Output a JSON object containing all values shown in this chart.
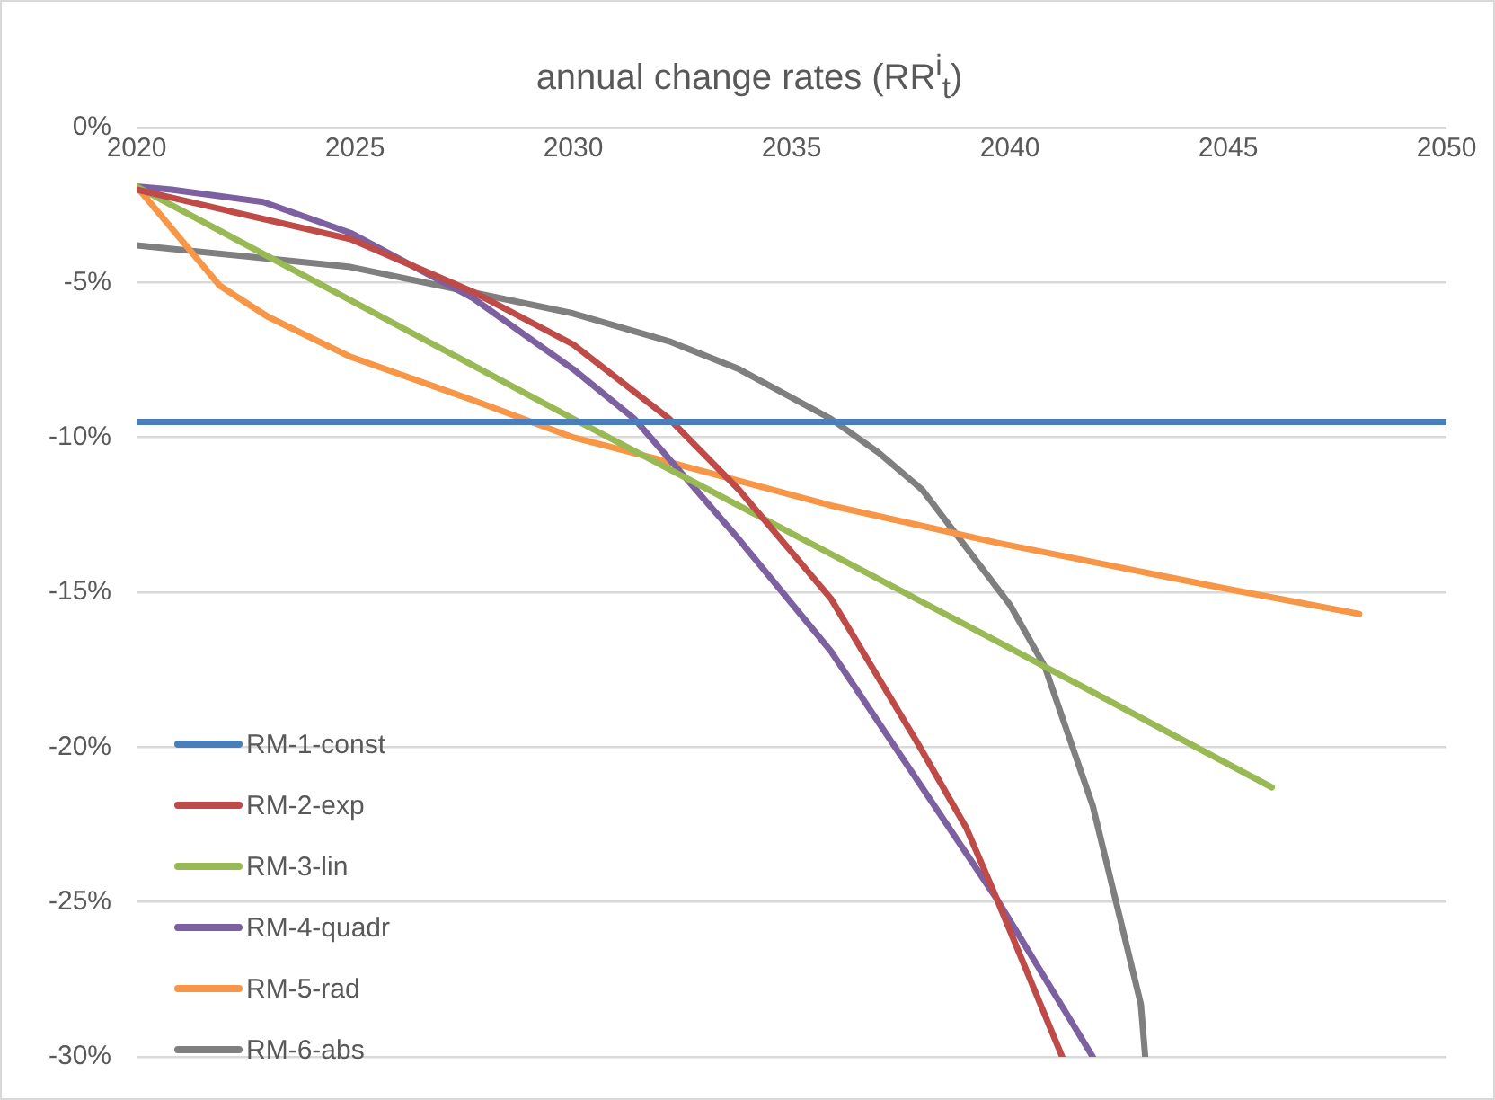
{
  "chart_data": {
    "type": "line",
    "title": "annual change rates (RR$^{i}$$_{t}$)",
    "xlim": [
      2020,
      2050
    ],
    "xticks": [
      2020,
      2025,
      2030,
      2035,
      2040,
      2045,
      2050
    ],
    "ylim": [
      -30,
      0
    ],
    "yticks": [
      {
        "value": 0,
        "label": "0%"
      },
      {
        "value": -5,
        "label": "-5%"
      },
      {
        "value": -10,
        "label": "-10%"
      },
      {
        "value": -15,
        "label": "-15%"
      },
      {
        "value": -20,
        "label": "-20%"
      },
      {
        "value": -25,
        "label": "-25%"
      },
      {
        "value": -30,
        "label": "-30%"
      }
    ],
    "grid": "y",
    "legend": "bottom left",
    "marker": "none",
    "line_style": "solid",
    "series": [
      {
        "name": "RM-1-const",
        "color": "#4a7ebb",
        "x": [
          2020,
          2050
        ],
        "values": [
          -9.5,
          -9.5
        ]
      },
      {
        "name": "RM-2-exp",
        "color": "#be4b48",
        "x": [
          2020,
          2024.9,
          2027.7,
          2030,
          2032.2,
          2033.8,
          2035.9,
          2037.9,
          2039,
          2039.7,
          2041.2
        ],
        "values": [
          -2.0,
          -3.6,
          -5.3,
          -7.0,
          -9.4,
          -11.7,
          -15.2,
          -19.9,
          -22.6,
          -24.9,
          -30
        ]
      },
      {
        "name": "RM-3-lin",
        "color": "#98b954",
        "x": [
          2020,
          2030,
          2040,
          2046
        ],
        "values": [
          -1.9,
          -9.4,
          -16.8,
          -21.3
        ]
      },
      {
        "name": "RM-4-quadr",
        "color": "#7d60a0",
        "x": [
          2020,
          2020.8,
          2022.9,
          2024.9,
          2027.7,
          2030,
          2031.4,
          2033.8,
          2035.9,
          2039.7,
          2041.9
        ],
        "values": [
          -1.9,
          -2.0,
          -2.4,
          -3.4,
          -5.5,
          -7.8,
          -9.4,
          -13.3,
          -16.9,
          -24.9,
          -30
        ]
      },
      {
        "name": "RM-5-rad",
        "color": "#f79646",
        "x": [
          2020,
          2021.9,
          2023,
          2024.9,
          2027.7,
          2030,
          2032.2,
          2035.9,
          2039.7,
          2045,
          2048
        ],
        "values": [
          -1.9,
          -5.1,
          -6.1,
          -7.4,
          -8.8,
          -10.0,
          -10.8,
          -12.2,
          -13.4,
          -14.9,
          -15.7
        ]
      },
      {
        "name": "RM-6-abs",
        "color": "#7f7f7f",
        "x": [
          2020,
          2024.9,
          2030,
          2032.2,
          2033.8,
          2035.9,
          2037,
          2038,
          2040,
          2040.8,
          2041.9,
          2043,
          2043.1
        ],
        "values": [
          -3.8,
          -4.5,
          -6.0,
          -6.9,
          -7.8,
          -9.4,
          -10.5,
          -11.7,
          -15.4,
          -17.4,
          -21.9,
          -28.3,
          -30
        ]
      }
    ]
  }
}
